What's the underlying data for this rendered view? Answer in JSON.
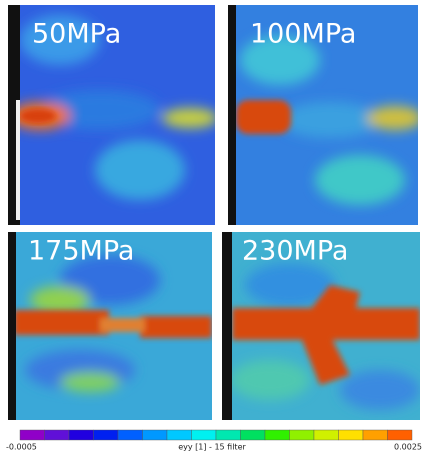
{
  "panels": [
    {
      "label": "50MPa"
    },
    {
      "label": "100MPa"
    },
    {
      "label": "175MPa"
    },
    {
      "label": "230MPa"
    }
  ],
  "colorbar": {
    "min_label": "-0.0005",
    "title": "eyy [1] - 15 filter",
    "max_label": "0.0025"
  }
}
